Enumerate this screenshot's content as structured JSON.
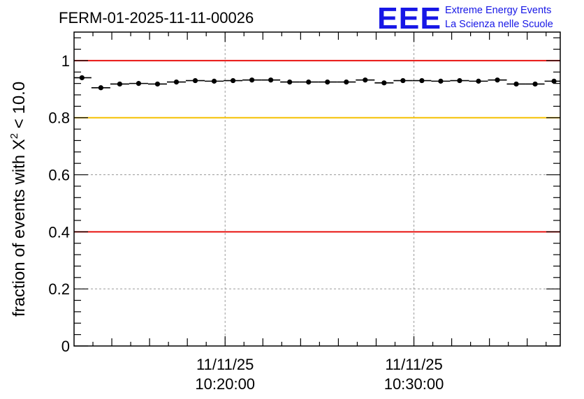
{
  "header": {
    "title": "FERM-01-2025-11-11-00026",
    "logo": {
      "text": "EEE",
      "line1": "Extreme Energy Events",
      "line2": "La Scienza nelle Scuole"
    }
  },
  "colors": {
    "threshold_red": "#e8120f",
    "threshold_yellow": "#f5c000",
    "logo_blue": "#1717e6",
    "grid": "#9a9a9a",
    "marker": "#000000"
  },
  "chart_data": {
    "type": "scatter",
    "title": "FERM-01-2025-11-11-00026",
    "ylabel_main": "fraction of events with X",
    "ylabel_sup": "2",
    "ylabel_tail": " < 10.0",
    "xlabel": "",
    "xlim_minutes": [
      0,
      25.75
    ],
    "ylim": [
      0,
      1.1
    ],
    "grid": true,
    "bin_width_minutes": 1,
    "y_ticks": [
      {
        "value": 0,
        "label": "0"
      },
      {
        "value": 0.2,
        "label": "0.2"
      },
      {
        "value": 0.4,
        "label": "0.4"
      },
      {
        "value": 0.6,
        "label": "0.6"
      },
      {
        "value": 0.8,
        "label": "0.8"
      },
      {
        "value": 1.0,
        "label": "1"
      }
    ],
    "x_time_ticks": [
      {
        "minutes": 8,
        "date": "11/11/25",
        "time": "10:20:00"
      },
      {
        "minutes": 18,
        "date": "11/11/25",
        "time": "10:30:00"
      }
    ],
    "thresholds": [
      {
        "value": 1.0,
        "color": "#e8120f"
      },
      {
        "value": 0.8,
        "color": "#f5c000"
      },
      {
        "value": 0.4,
        "color": "#e8120f"
      }
    ],
    "series": [
      {
        "name": "fraction",
        "x": [
          0.42,
          1.42,
          2.42,
          3.42,
          4.42,
          5.42,
          6.42,
          7.42,
          8.42,
          9.42,
          10.42,
          11.42,
          12.42,
          13.42,
          14.42,
          15.42,
          16.42,
          17.42,
          18.42,
          19.42,
          20.42,
          21.42,
          22.42,
          23.42,
          24.42,
          25.42
        ],
        "y": [
          0.94,
          0.905,
          0.918,
          0.92,
          0.918,
          0.925,
          0.93,
          0.928,
          0.93,
          0.932,
          0.932,
          0.925,
          0.925,
          0.925,
          0.925,
          0.932,
          0.922,
          0.93,
          0.93,
          0.928,
          0.93,
          0.928,
          0.932,
          0.918,
          0.918,
          0.928
        ]
      }
    ]
  }
}
